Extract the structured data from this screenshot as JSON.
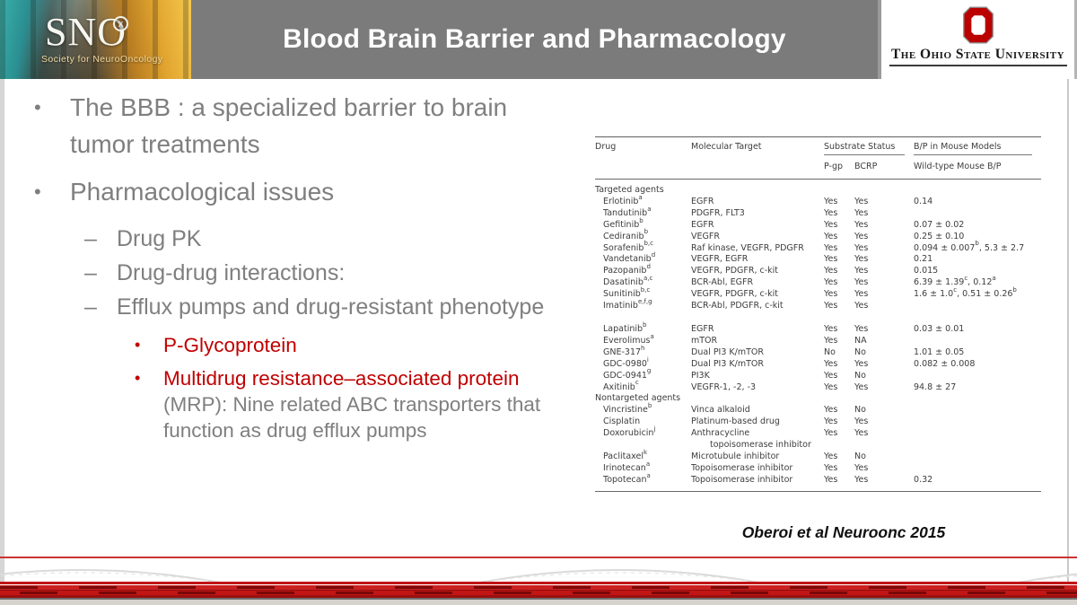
{
  "slide": {
    "title": "Blood Brain Barrier and Pharmacology",
    "citation": "Oberoi et al Neuroonc 2015"
  },
  "logos": {
    "sno": {
      "acronym": "SNO",
      "badge": "x",
      "tagline": "Society for NeuroOncology"
    },
    "osu": {
      "name": "The Ohio State University"
    }
  },
  "glyphs": {
    "bullet": "•",
    "dash": "–"
  },
  "bullets": {
    "l1_a": "The BBB : a specialized barrier to brain tumor treatments",
    "l1_b": "Pharmacological issues",
    "l2_a": "Drug PK",
    "l2_b": "Drug-drug interactions:",
    "l2_c": "Efflux pumps and drug-resistant phenotype",
    "l3_a": "P-Glycoprotein",
    "l3_b_red": "Multidrug resistance–associated protein",
    "l3_b_gray": " (MRP): Nine related ABC transporters that function as drug efflux pumps"
  },
  "table": {
    "headers": {
      "drug": "Drug",
      "target": "Molecular Target",
      "substrate_group": "Substrate Status",
      "bp_group": "B/P in Mouse Models",
      "pgp": "P-gp",
      "bcrp": "BCRP",
      "bp_sub": "Wild-type Mouse B/P"
    },
    "rows": [
      {
        "type": "section",
        "label": "Targeted agents"
      },
      {
        "type": "drug",
        "drug": "Erlotinib^{a}",
        "target": "EGFR",
        "pgp": "Yes",
        "bcrp": "Yes",
        "bp": "0.14"
      },
      {
        "type": "drug",
        "drug": "Tandutinib^{a}",
        "target": "PDGFR, FLT3",
        "pgp": "Yes",
        "bcrp": "Yes",
        "bp": ""
      },
      {
        "type": "drug",
        "drug": "Gefitinib^{b}",
        "target": "EGFR",
        "pgp": "Yes",
        "bcrp": "Yes",
        "bp": "0.07 ± 0.02"
      },
      {
        "type": "drug",
        "drug": "Cediranib^{b}",
        "target": "VEGFR",
        "pgp": "Yes",
        "bcrp": "Yes",
        "bp": "0.25 ± 0.10"
      },
      {
        "type": "drug",
        "drug": "Sorafenib^{b,c}",
        "target": "Raf kinase, VEGFR, PDGFR",
        "pgp": "Yes",
        "bcrp": "Yes",
        "bp": "0.094 ± 0.007^{b}, 5.3 ± 2.7"
      },
      {
        "type": "drug",
        "drug": "Vandetanib^{d}",
        "target": "VEGFR, EGFR",
        "pgp": "Yes",
        "bcrp": "Yes",
        "bp": "0.21"
      },
      {
        "type": "drug",
        "drug": "Pazopanib^{d}",
        "target": "VEGFR, PDGFR, c-kit",
        "pgp": "Yes",
        "bcrp": "Yes",
        "bp": "0.015"
      },
      {
        "type": "drug",
        "drug": "Dasatinib^{a,c}",
        "target": "BCR-Abl, EGFR",
        "pgp": "Yes",
        "bcrp": "Yes",
        "bp": "6.39 ± 1.39^{c}, 0.12^{a}"
      },
      {
        "type": "drug",
        "drug": "Sunitinib^{b,c}",
        "target": "VEGFR, PDGFR, c-kit",
        "pgp": "Yes",
        "bcrp": "Yes",
        "bp": "1.6 ± 1.0^{c}, 0.51 ± 0.26^{b}"
      },
      {
        "type": "drug",
        "drug": "Imatinib^{e,f,g}",
        "target": "BCR-Abl, PDGFR, c-kit",
        "pgp": "Yes",
        "bcrp": "Yes",
        "bp": ""
      },
      {
        "type": "spacer"
      },
      {
        "type": "drug",
        "drug": "Lapatinib^{b}",
        "target": "EGFR",
        "pgp": "Yes",
        "bcrp": "Yes",
        "bp": "0.03 ± 0.01"
      },
      {
        "type": "drug",
        "drug": "Everolimus^{a}",
        "target": "mTOR",
        "pgp": "Yes",
        "bcrp": "NA",
        "bp": ""
      },
      {
        "type": "drug",
        "drug": "GNE-317^{h}",
        "target": "Dual PI3 K/mTOR",
        "pgp": "No",
        "bcrp": "No",
        "bp": "1.01 ± 0.05"
      },
      {
        "type": "drug",
        "drug": "GDC-0980^{i}",
        "target": "Dual PI3 K/mTOR",
        "pgp": "Yes",
        "bcrp": "Yes",
        "bp": "0.082 ± 0.008"
      },
      {
        "type": "drug",
        "drug": "GDC-0941^{g}",
        "target": "PI3K",
        "pgp": "Yes",
        "bcrp": "No",
        "bp": ""
      },
      {
        "type": "drug",
        "drug": "Axitinib^{c}",
        "target": "VEGFR-1, -2, -3",
        "pgp": "Yes",
        "bcrp": "Yes",
        "bp": "94.8 ± 27"
      },
      {
        "type": "section",
        "label": "Nontargeted agents"
      },
      {
        "type": "drug",
        "drug": "Vincristine^{b}",
        "target": "Vinca alkaloid",
        "pgp": "Yes",
        "bcrp": "No",
        "bp": ""
      },
      {
        "type": "drug",
        "drug": "Cisplatin",
        "target": "Platinum-based drug",
        "pgp": "Yes",
        "bcrp": "Yes",
        "bp": ""
      },
      {
        "type": "drug",
        "drug": "Doxorubicin^{j}",
        "target": "Anthracycline",
        "target2": "topoisomerase inhibitor",
        "pgp": "Yes",
        "bcrp": "Yes",
        "bp": ""
      },
      {
        "type": "drug",
        "drug": "Paclitaxel^{k}",
        "target": "Microtubule inhibitor",
        "pgp": "Yes",
        "bcrp": "No",
        "bp": ""
      },
      {
        "type": "drug",
        "drug": "Irinotecan^{a}",
        "target": "Topoisomerase inhibitor",
        "pgp": "Yes",
        "bcrp": "Yes",
        "bp": ""
      },
      {
        "type": "drug",
        "drug": "Topotecan^{a}",
        "target": "Topoisomerase inhibitor",
        "pgp": "Yes",
        "bcrp": "Yes",
        "bp": "0.32"
      }
    ]
  },
  "colors": {
    "title_bar_gray": "#7b7b7b",
    "body_text_gray": "#7f7f7f",
    "accent_red": "#c00000",
    "footer_band_red": "#c21515",
    "osu_red": "#bb0000"
  }
}
